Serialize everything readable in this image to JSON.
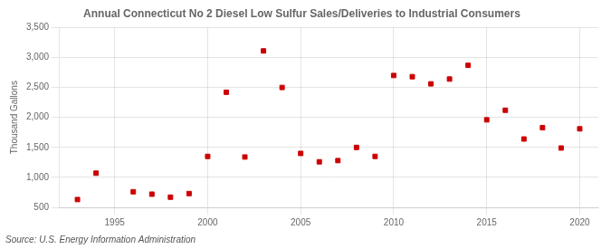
{
  "chart_data": {
    "type": "scatter",
    "title": "Annual Connecticut No 2 Diesel Low Sulfur Sales/Deliveries to Industrial Consumers",
    "y_label": "Thousand Gallons",
    "annotations": [
      "Source: U.S. Energy Information Administration"
    ],
    "x": [
      1993,
      1994,
      1996,
      1997,
      1998,
      1999,
      2000,
      2001,
      2002,
      2003,
      2004,
      2005,
      2006,
      2007,
      2008,
      2009,
      2010,
      2011,
      2012,
      2013,
      2014,
      2015,
      2016,
      2017,
      2018,
      2019,
      2020
    ],
    "values": [
      630,
      1070,
      760,
      720,
      670,
      730,
      1350,
      2420,
      1340,
      3110,
      2500,
      1400,
      1260,
      1280,
      1500,
      1350,
      2700,
      2680,
      2560,
      2640,
      2870,
      1960,
      2120,
      1640,
      1830,
      1490,
      1810
    ],
    "color": "#cc0000",
    "marker": "square",
    "xlim": [
      1992,
      2021
    ],
    "xticks": [
      1995,
      2000,
      2005,
      2010,
      2015,
      2020
    ],
    "ylim": [
      500,
      3500
    ],
    "yticks": [
      500,
      {
        "value": 1000,
        "label": "1,000"
      },
      {
        "value": 1500,
        "label": "1,500"
      },
      {
        "value": 2000,
        "label": "2,000"
      },
      {
        "value": 2500,
        "label": "2,500"
      },
      {
        "value": 3000,
        "label": "3,000"
      },
      {
        "value": 3500,
        "label": "3,500"
      }
    ],
    "grid": true
  }
}
